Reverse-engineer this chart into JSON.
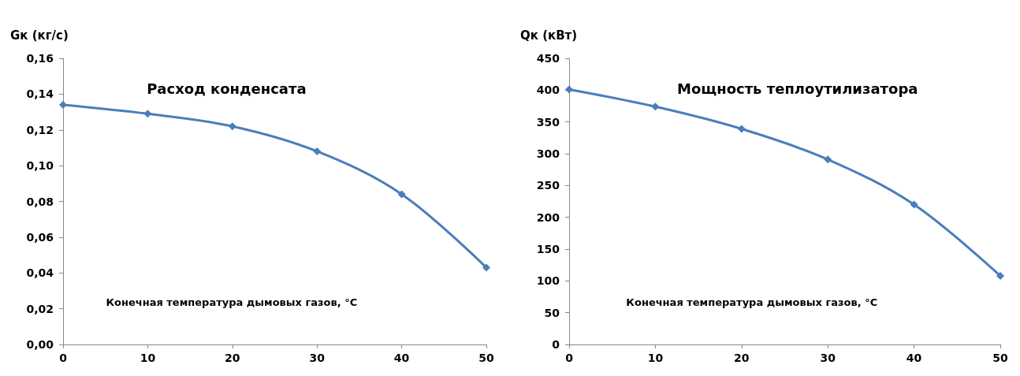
{
  "chart_data": [
    {
      "type": "line",
      "title": "Расход конденсата",
      "xlabel": "Конечная температура дымовых газов, °C",
      "ylabel": "Gк (кг/с)",
      "x": [
        0,
        10,
        20,
        30,
        40,
        50
      ],
      "series": [
        {
          "color": "#4a7ebb",
          "values": [
            0.134,
            0.129,
            0.122,
            0.108,
            0.084,
            0.043
          ]
        }
      ],
      "xlim": [
        0,
        50
      ],
      "xticks": [
        0,
        10,
        20,
        30,
        40,
        50
      ],
      "ylim": [
        0,
        0.16
      ],
      "yticks": [
        {
          "value": 0,
          "label": "0,00"
        },
        {
          "value": 0.02,
          "label": "0,02"
        },
        {
          "value": 0.04,
          "label": "0,04"
        },
        {
          "value": 0.06,
          "label": "0,06"
        },
        {
          "value": 0.08,
          "label": "0,08"
        },
        {
          "value": 0.1,
          "label": "0,10"
        },
        {
          "value": 0.12,
          "label": "0,12"
        },
        {
          "value": 0.14,
          "label": "0,14"
        },
        {
          "value": 0.16,
          "label": "0,16"
        }
      ],
      "grid": false,
      "marker": "diamond",
      "line_style": "solid"
    },
    {
      "type": "line",
      "title": "Мощность теплоутилизатора",
      "xlabel": "Конечная температура дымовых газов, °C",
      "ylabel": "Qк (кВт)",
      "x": [
        0,
        10,
        20,
        30,
        40,
        50
      ],
      "series": [
        {
          "color": "#4a7ebb",
          "values": [
            401,
            374,
            339,
            291,
            220,
            108
          ]
        }
      ],
      "xlim": [
        0,
        50
      ],
      "xticks": [
        0,
        10,
        20,
        30,
        40,
        50
      ],
      "ylim": [
        0,
        450
      ],
      "yticks": [
        0,
        50,
        100,
        150,
        200,
        250,
        300,
        350,
        400,
        450
      ],
      "grid": false,
      "marker": "diamond",
      "line_style": "solid"
    }
  ]
}
